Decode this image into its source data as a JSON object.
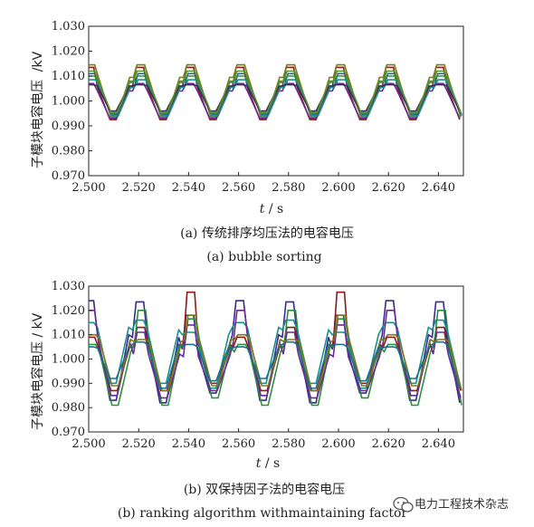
{
  "chart_data": [
    {
      "type": "line",
      "caption_cn": "(a) 传统排序均压法的电容电压",
      "caption_en": "(a) bubble sorting",
      "ylabel": "子模块电容电压",
      "ylabel_unit": "/kV",
      "xlabel_var": "t",
      "xlabel_unit": " / s",
      "xlim": [
        2.5,
        2.65
      ],
      "ylim": [
        0.97,
        1.03
      ],
      "xticks": [
        "2.500",
        "2.520",
        "2.540",
        "2.560",
        "2.580",
        "2.600",
        "2.620",
        "2.640"
      ],
      "yticks": [
        "0.970",
        "0.980",
        "0.990",
        "1.000",
        "1.010",
        "1.020",
        "1.030"
      ],
      "period": 0.02,
      "series": [
        {
          "color": "#8b1a1a",
          "values": [
            1.0135,
            1.0055,
            0.9925
          ]
        },
        {
          "color": "#7b7b1a",
          "values": [
            1.0145,
            1.0095,
            0.9935
          ]
        },
        {
          "color": "#1a6f8f",
          "values": [
            1.011,
            1.006,
            0.9945
          ]
        },
        {
          "color": "#6a2a8f",
          "values": [
            1.007,
            1.004,
            0.993
          ]
        },
        {
          "color": "#2a8f3a",
          "values": [
            1.01,
            1.0075,
            0.995
          ]
        },
        {
          "color": "#1a8f8f",
          "values": [
            1.0085,
            1.0055,
            0.994
          ]
        },
        {
          "color": "#3a2a5a",
          "values": [
            1.0065,
            1.006,
            0.996
          ]
        },
        {
          "color": "#5a8f2a",
          "values": [
            1.012,
            1.008,
            0.9955
          ]
        }
      ]
    },
    {
      "type": "line",
      "caption_cn": "(b) 双保持因子法的电容电压",
      "caption_en": "(b) ranking algorithm withmaintaining factor",
      "ylabel": "子模块电容电压 / kV",
      "xlabel_var": "t",
      "xlabel_unit": " / s",
      "xlim": [
        2.5,
        2.65
      ],
      "ylim": [
        0.97,
        1.03
      ],
      "xticks": [
        "2.500",
        "2.520",
        "2.540",
        "2.560",
        "2.580",
        "2.600",
        "2.620",
        "2.640"
      ],
      "yticks": [
        "0.970",
        "0.980",
        "0.990",
        "1.000",
        "1.010",
        "1.020",
        "1.030"
      ],
      "period": 0.02,
      "series": [
        {
          "color": "#3a2a8f",
          "values": [
            1.024,
            1.01,
            0.983,
            1.0235,
            1.009,
            0.982,
            1.018,
            1.004,
            0.986,
            1.015
          ]
        },
        {
          "color": "#8b1a1a",
          "values": [
            1.009,
            1.005,
            0.987,
            1.013,
            1.005,
            0.987,
            1.0275,
            1.006,
            0.99,
            1.012
          ]
        },
        {
          "color": "#2a8f3a",
          "values": [
            1.006,
            1.003,
            0.981,
            1.02,
            1.006,
            0.981,
            1.0165,
            1.005,
            0.984,
            1.0265
          ]
        },
        {
          "color": "#1a8f8f",
          "values": [
            1.015,
            1.013,
            0.99,
            1.016,
            1.012,
            0.99,
            1.011,
            1.01,
            0.988,
            1.02
          ]
        },
        {
          "color": "#6a2a8f",
          "values": [
            1.02,
            1.007,
            0.985,
            1.011,
            1.002,
            0.984,
            1.014,
            1.001,
            0.987,
            1.006
          ]
        },
        {
          "color": "#7b7b1a",
          "values": [
            1.01,
            1.008,
            0.989,
            1.008,
            1.007,
            0.987,
            1.018,
            1.008,
            0.989,
            1.01
          ]
        },
        {
          "color": "#1a6f8f",
          "values": [
            1.005,
            1.0045,
            0.992,
            1.007,
            1.006,
            0.988,
            1.006,
            1.005,
            0.991,
            1.009
          ]
        }
      ]
    }
  ],
  "watermark": "电力工程技术杂志"
}
